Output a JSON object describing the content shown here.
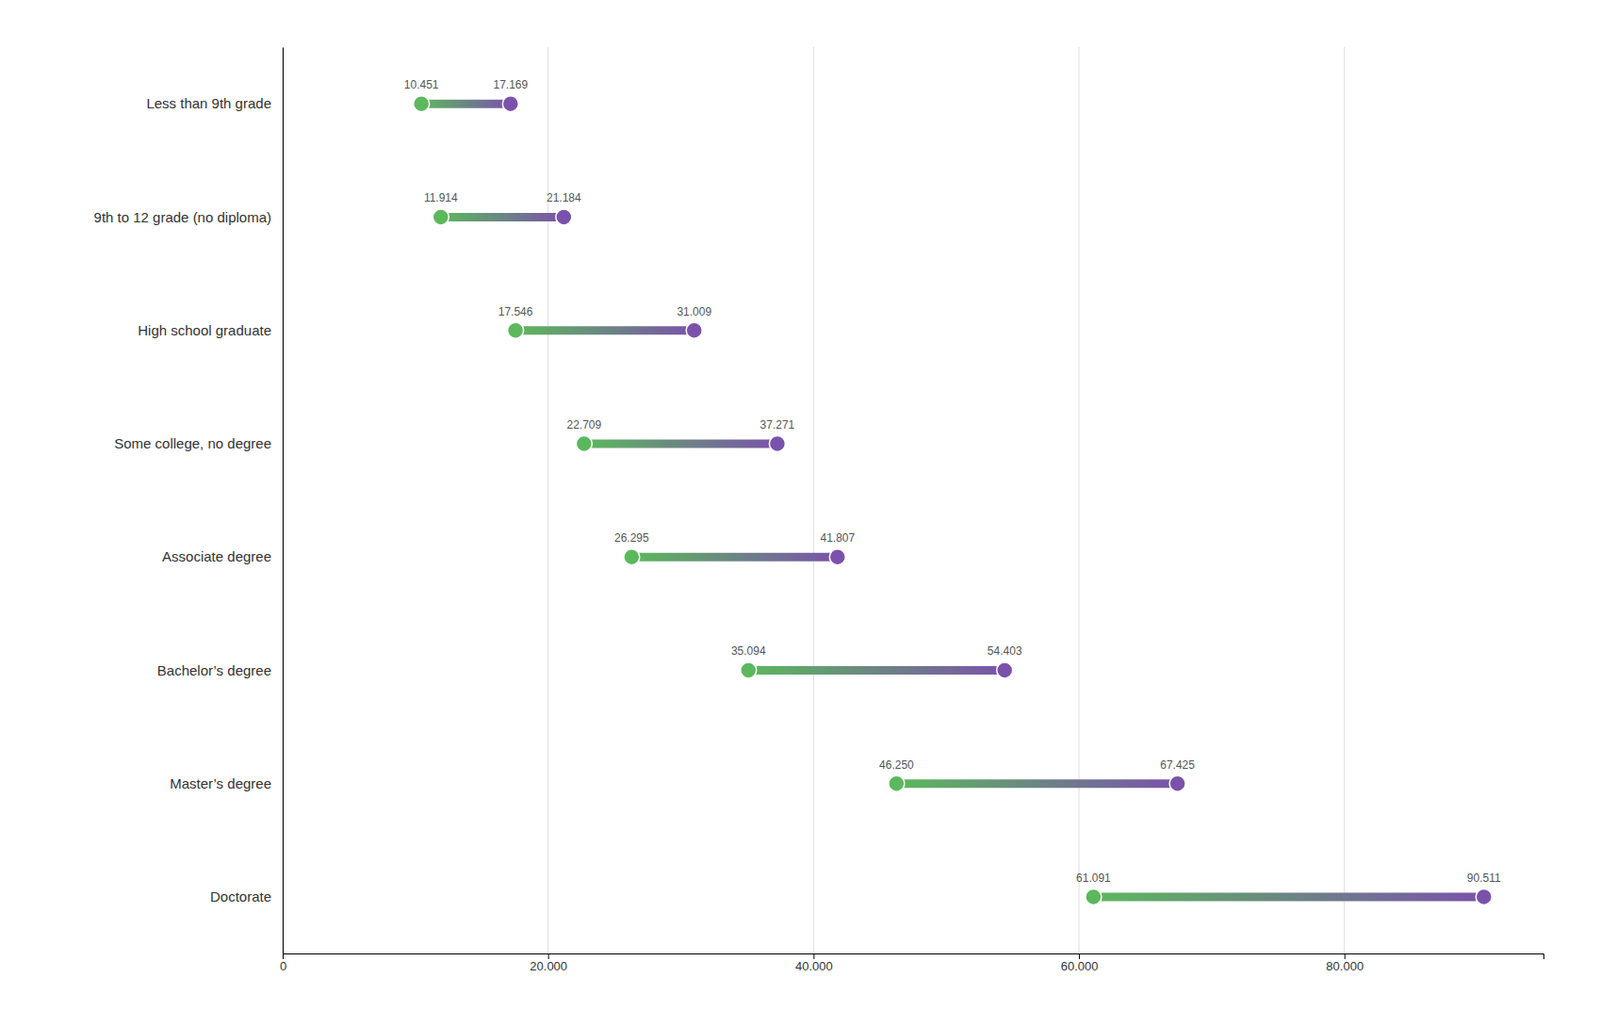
{
  "chart_data": {
    "type": "dumbbell",
    "orientation": "horizontal",
    "categories": [
      "Less than 9th grade",
      "9th to 12 grade (no diploma)",
      "High school graduate",
      "Some college, no degree",
      "Associate degree",
      "Bachelor’s degree",
      "Master’s degree",
      "Doctorate"
    ],
    "series": [
      {
        "color": "#5cb85c",
        "values": [
          10451,
          11914,
          17546,
          22709,
          26295,
          35094,
          46250,
          61091
        ],
        "value_labels": [
          "10.451",
          "11.914",
          "17.546",
          "22.709",
          "26.295",
          "35.094",
          "46.250",
          "61.091"
        ]
      },
      {
        "color": "#7B52AB",
        "values": [
          17169,
          21184,
          31009,
          37271,
          41807,
          54403,
          67425,
          90511
        ],
        "value_labels": [
          "17.169",
          "21.184",
          "31.009",
          "37.271",
          "41.807",
          "54.403",
          "67.425",
          "90.511"
        ]
      }
    ],
    "xlim": [
      0,
      95000
    ],
    "xticks": [
      0,
      {
        "value": 20000,
        "label": "20.000"
      },
      {
        "value": 40000,
        "label": "40.000"
      },
      {
        "value": 60000,
        "label": "60.000"
      },
      {
        "value": 80000,
        "label": "80.000"
      }
    ],
    "grid": true,
    "data_labels": true
  }
}
